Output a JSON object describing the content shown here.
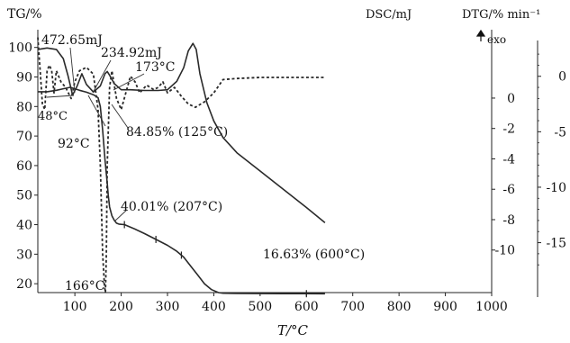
{
  "chart_data": {
    "type": "line",
    "xlabel": "T/°C",
    "xlim": [
      20,
      1000
    ],
    "x_ticks": [
      "100",
      "200",
      "300",
      "400",
      "500",
      "600",
      "700",
      "800",
      "900",
      "1000"
    ],
    "axes": {
      "tg": {
        "label": "TG/%",
        "range": [
          17,
          106
        ],
        "ticks": [
          "20",
          "30",
          "40",
          "50",
          "60",
          "70",
          "80",
          "90",
          "100"
        ]
      },
      "dsc": {
        "label": "DSC/mJ",
        "range": [
          -12.8,
          4.5
        ],
        "ticks": [
          "0",
          "-2",
          "-4",
          "-6",
          "-8",
          "-10"
        ]
      },
      "dtg": {
        "label": "DTG/% min⁻¹",
        "range": [
          -19.5,
          4.2
        ],
        "ticks": [
          "0",
          "-5",
          "-10",
          "-15"
        ]
      }
    },
    "exo_label": "exo",
    "series": [
      {
        "axis": "tg",
        "style": "solid",
        "x": [
          20,
          40,
          60,
          75,
          90,
          100,
          110,
          125,
          140,
          150,
          155,
          160,
          165,
          170,
          172,
          175,
          180,
          185,
          190,
          195,
          200,
          207,
          215,
          230,
          250,
          275,
          300,
          320,
          335,
          350,
          365,
          380,
          395,
          410,
          420,
          450,
          500,
          550,
          600,
          640
        ],
        "y": [
          85,
          85,
          85.5,
          86,
          86.5,
          86,
          85.5,
          84.85,
          84,
          83,
          80,
          72,
          62,
          54,
          50,
          46,
          43,
          41.5,
          40.5,
          40.2,
          40.1,
          40.01,
          39.5,
          38.5,
          37,
          35,
          33,
          31,
          29,
          26,
          23,
          20,
          18,
          17,
          16.8,
          16.7,
          16.65,
          16.64,
          16.63,
          16.6
        ]
      },
      {
        "axis": "dsc",
        "style": "solid",
        "x": [
          20,
          40,
          60,
          75,
          85,
          95,
          105,
          115,
          125,
          140,
          155,
          165,
          170,
          175,
          185,
          200,
          220,
          250,
          280,
          300,
          320,
          335,
          345,
          355,
          362,
          370,
          385,
          400,
          420,
          450,
          500,
          550,
          600,
          640
        ],
        "y": [
          3.2,
          3.3,
          3.2,
          2.6,
          1.5,
          0.2,
          0.8,
          1.6,
          0.9,
          0.4,
          0.8,
          1.6,
          1.75,
          1.5,
          0.95,
          0.55,
          0.55,
          0.5,
          0.5,
          0.55,
          1.1,
          2.0,
          3.1,
          3.6,
          3.2,
          1.6,
          -0.3,
          -1.5,
          -2.6,
          -3.6,
          -4.8,
          -6.0,
          -7.2,
          -8.2
        ]
      },
      {
        "axis": "dtg",
        "style": "dashed",
        "x": [
          20,
          25,
          30,
          35,
          40,
          45,
          50,
          55,
          60,
          70,
          80,
          92,
          100,
          110,
          125,
          140,
          150,
          155,
          160,
          164,
          166,
          168,
          170,
          175,
          180,
          190,
          200,
          210,
          220,
          230,
          240,
          255,
          270,
          280,
          290,
          300,
          315,
          330,
          345,
          360,
          380,
          400,
          420,
          450,
          500,
          550,
          600,
          640
        ],
        "y": [
          3.5,
          0.5,
          -2.5,
          -3,
          0.5,
          1,
          0.5,
          -1.5,
          0.5,
          -0.5,
          -1,
          -2,
          -0.5,
          0.5,
          0.8,
          0.2,
          -3,
          -8,
          -16,
          -19,
          -19.5,
          -16,
          -8,
          -1,
          0.5,
          -2,
          -3,
          -1.5,
          0,
          -0.5,
          -1.5,
          -0.8,
          -1.2,
          -1,
          -0.5,
          -1.5,
          -1,
          -1.8,
          -2.5,
          -2.8,
          -2.3,
          -1.5,
          -0.3,
          -0.2,
          -0.1,
          -0.1,
          -0.1,
          -0.1
        ]
      }
    ],
    "annotations": [
      {
        "text": "472.65mJ"
      },
      {
        "text": "234.92mJ"
      },
      {
        "text": "173°C"
      },
      {
        "text": "48°C"
      },
      {
        "text": "92°C"
      },
      {
        "text": "84.85% (125°C)"
      },
      {
        "text": "40.01% (207°C)"
      },
      {
        "text": "166°C"
      },
      {
        "text": "16.63% (600°C)"
      }
    ]
  }
}
